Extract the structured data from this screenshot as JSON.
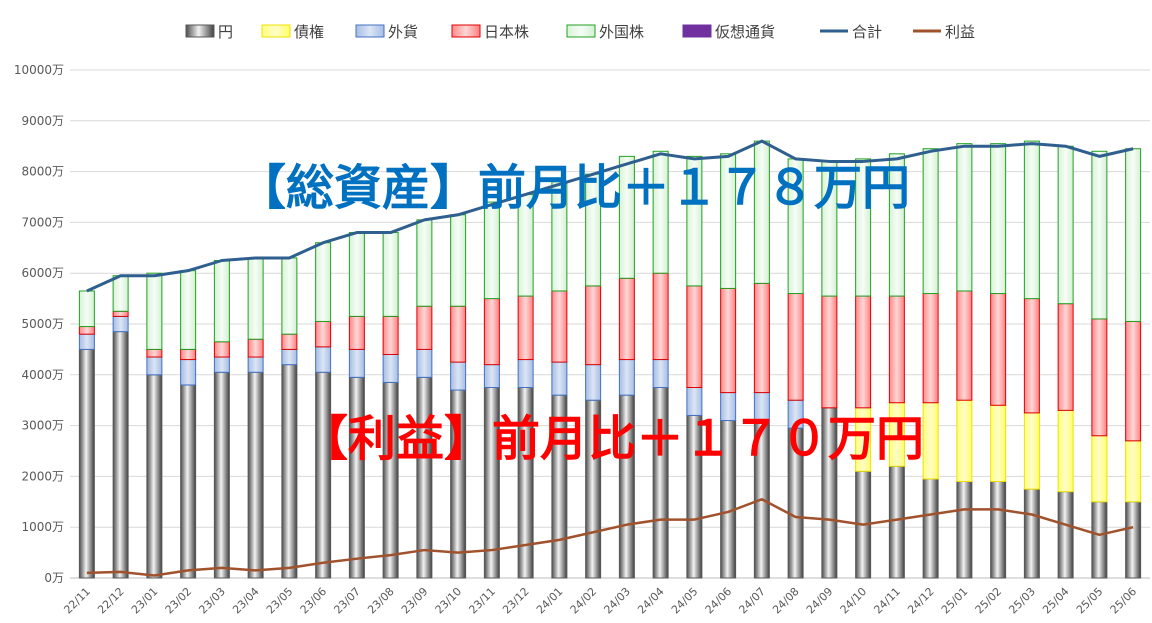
{
  "chart_data": {
    "type": "bar",
    "stacked": true,
    "categories": [
      "22/11",
      "22/12",
      "23/01",
      "23/02",
      "23/03",
      "23/04",
      "23/05",
      "23/06",
      "23/07",
      "23/08",
      "23/09",
      "23/10",
      "23/11",
      "23/12",
      "24/01",
      "24/02",
      "24/03",
      "24/04",
      "24/05",
      "24/06",
      "24/07",
      "24/08",
      "24/09",
      "24/10",
      "24/11",
      "24/12",
      "25/01",
      "25/02",
      "25/03",
      "25/04",
      "25/05",
      "25/06"
    ],
    "ylim": [
      0,
      10000
    ],
    "yticks": [
      "0万",
      "1000万",
      "2000万",
      "3000万",
      "4000万",
      "5000万",
      "6000万",
      "7000万",
      "8000万",
      "9000万",
      "10000万"
    ],
    "grid": true,
    "legend_position": "top",
    "series": [
      {
        "name": "円",
        "kind": "bar",
        "color": "#7f7f7f",
        "values": [
          4500,
          4850,
          4000,
          3800,
          4050,
          4050,
          4200,
          4050,
          3950,
          3850,
          3950,
          3700,
          3750,
          3750,
          3600,
          3500,
          3600,
          3750,
          3200,
          3100,
          3050,
          2950,
          3350,
          2100,
          2200,
          1950,
          1900,
          1900,
          1750,
          1700,
          1500,
          1500
        ]
      },
      {
        "name": "債権",
        "kind": "bar",
        "color": "#ffff66",
        "values": [
          0,
          0,
          0,
          0,
          0,
          0,
          0,
          0,
          0,
          0,
          0,
          0,
          0,
          0,
          0,
          0,
          0,
          0,
          0,
          0,
          0,
          0,
          0,
          1250,
          1250,
          1500,
          1600,
          1500,
          1500,
          1600,
          1300,
          1200
        ]
      },
      {
        "name": "外貨",
        "kind": "bar",
        "color": "#b4c7e7",
        "values": [
          300,
          300,
          350,
          500,
          300,
          300,
          300,
          500,
          550,
          550,
          550,
          550,
          450,
          550,
          650,
          700,
          700,
          550,
          550,
          550,
          600,
          550,
          0,
          0,
          0,
          0,
          0,
          0,
          0,
          0,
          0,
          0
        ]
      },
      {
        "name": "日本株",
        "kind": "bar",
        "color": "#ff9999",
        "values": [
          150,
          100,
          150,
          200,
          300,
          350,
          300,
          500,
          650,
          750,
          850,
          1100,
          1300,
          1250,
          1400,
          1550,
          1600,
          1700,
          2000,
          2050,
          2150,
          2100,
          2200,
          2200,
          2100,
          2150,
          2150,
          2200,
          2250,
          2100,
          2300,
          2350
        ]
      },
      {
        "name": "外国株",
        "kind": "bar",
        "color": "#e2f5e2",
        "values": [
          700,
          700,
          1500,
          1550,
          1600,
          1600,
          1500,
          1550,
          1650,
          1650,
          1700,
          1800,
          1900,
          2000,
          2150,
          2200,
          2400,
          2400,
          2550,
          2650,
          2800,
          2650,
          2650,
          2700,
          2800,
          2850,
          2900,
          2950,
          3100,
          3100,
          3300,
          3400
        ]
      },
      {
        "name": "仮想通貨",
        "kind": "bar",
        "color": "#7030a0",
        "values": [
          0,
          0,
          0,
          0,
          0,
          0,
          0,
          0,
          0,
          0,
          0,
          0,
          0,
          0,
          0,
          0,
          0,
          0,
          0,
          0,
          0,
          0,
          0,
          0,
          0,
          0,
          0,
          0,
          0,
          0,
          0,
          0
        ]
      },
      {
        "name": "合計",
        "kind": "line",
        "color": "#2e5f8f",
        "values": [
          5650,
          5950,
          5950,
          6050,
          6250,
          6300,
          6300,
          6600,
          6800,
          6800,
          7050,
          7150,
          7350,
          7550,
          7750,
          7950,
          8150,
          8350,
          8250,
          8300,
          8600,
          8250,
          8200,
          8200,
          8250,
          8400,
          8500,
          8500,
          8550,
          8500,
          8300,
          8450
        ]
      },
      {
        "name": "利益",
        "kind": "line",
        "color": "#a0522d",
        "values": [
          100,
          120,
          50,
          150,
          200,
          150,
          200,
          300,
          380,
          450,
          550,
          500,
          550,
          650,
          750,
          900,
          1050,
          1150,
          1150,
          1300,
          1550,
          1200,
          1150,
          1050,
          1150,
          1250,
          1350,
          1350,
          1250,
          1050,
          850,
          1000
        ]
      }
    ],
    "annotations": {
      "total": "【総資産】前月比＋１７８万円",
      "profit": "【利益】前月比＋１７０万円"
    }
  }
}
